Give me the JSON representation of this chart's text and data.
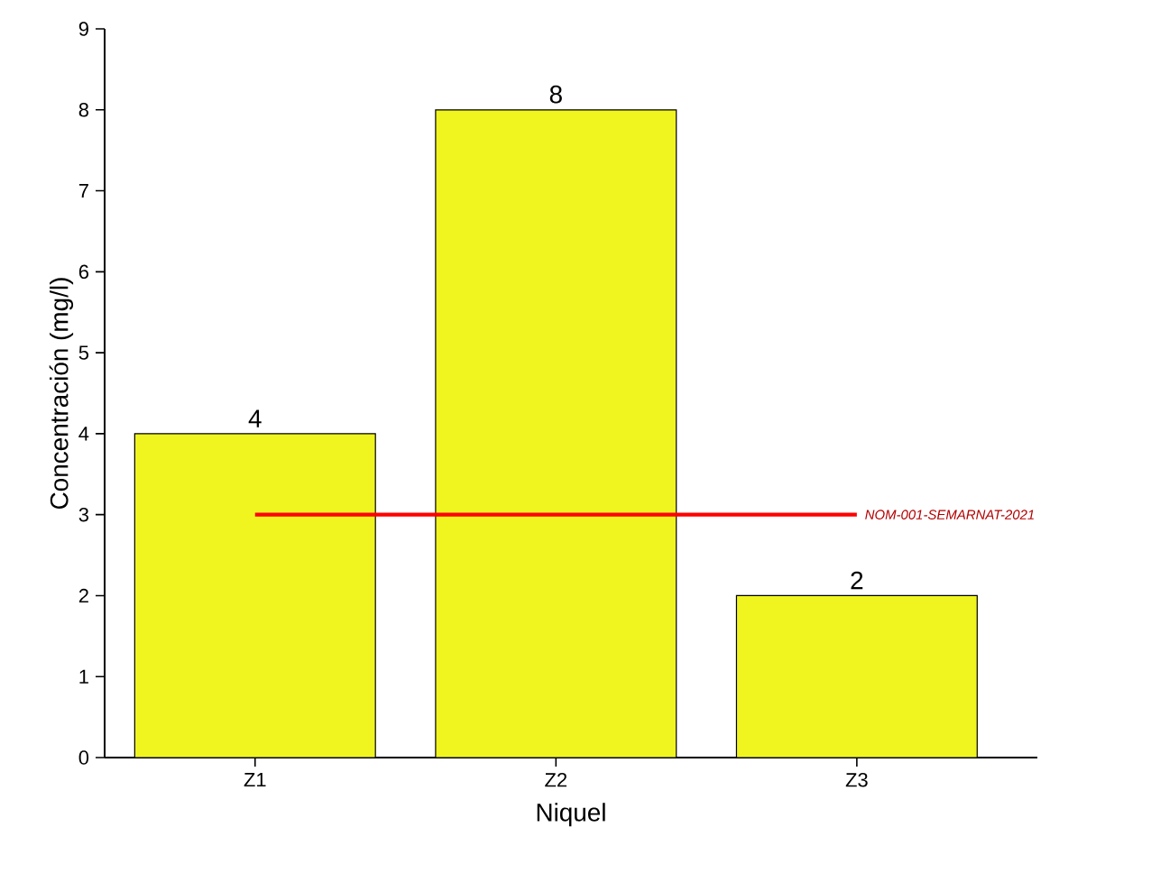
{
  "chart_data": {
    "type": "bar",
    "xlabel": "Niquel",
    "ylabel": "Concentración (mg/l)",
    "categories": [
      "Z1",
      "Z2",
      "Z3"
    ],
    "values": [
      4,
      8,
      2
    ],
    "color": "#f0f520",
    "ylim": [
      0,
      9
    ],
    "yticks": [
      0,
      1,
      2,
      3,
      4,
      5,
      6,
      7,
      8,
      9
    ],
    "data_labels": true,
    "grid": false,
    "ref_lines": [
      {
        "axis": "y",
        "value": 3,
        "label": "NOM-001-SEMARNAT-2021",
        "color": "#ff0000"
      }
    ]
  }
}
